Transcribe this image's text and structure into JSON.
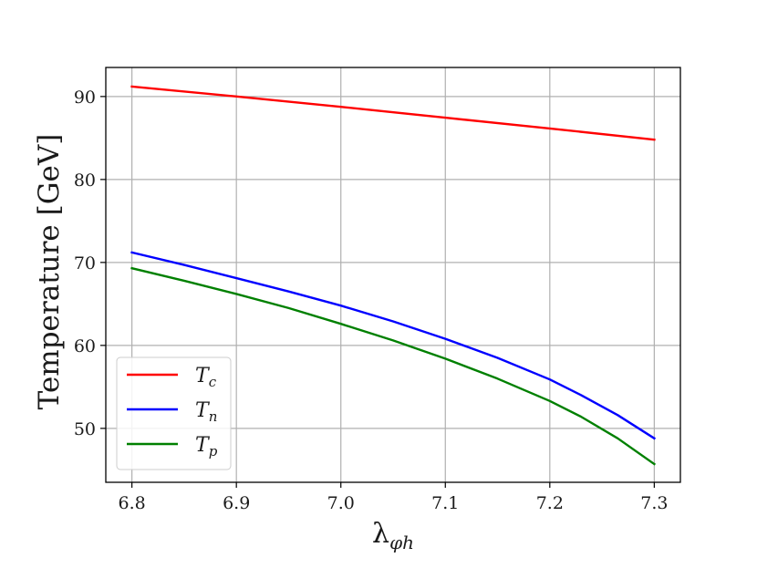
{
  "chart_data": {
    "type": "line",
    "title": "",
    "xlabel": "λ",
    "xlabel_sub": "φh",
    "ylabel": "Temperature [GeV]",
    "xlim": [
      6.775,
      7.325
    ],
    "ylim": [
      43.5,
      93.5
    ],
    "xticks": [
      6.8,
      6.9,
      7.0,
      7.1,
      7.2,
      7.3
    ],
    "xtick_labels": [
      "6.8",
      "6.9",
      "7.0",
      "7.1",
      "7.2",
      "7.3"
    ],
    "yticks": [
      50,
      60,
      70,
      80,
      90
    ],
    "ytick_labels": [
      "50",
      "60",
      "70",
      "80",
      "90"
    ],
    "grid": true,
    "legend_position": "lower-left",
    "series": [
      {
        "name": "T",
        "name_sub": "c",
        "color": "#ff0000",
        "x": [
          6.8,
          6.9,
          7.0,
          7.1,
          7.2,
          7.3
        ],
        "y": [
          91.2,
          90.0,
          88.75,
          87.45,
          86.15,
          84.8
        ]
      },
      {
        "name": "T",
        "name_sub": "n",
        "color": "#0000ff",
        "x": [
          6.8,
          6.85,
          6.9,
          6.95,
          7.0,
          7.05,
          7.1,
          7.15,
          7.2,
          7.23,
          7.265,
          7.3
        ],
        "y": [
          71.2,
          69.7,
          68.1,
          66.5,
          64.8,
          62.9,
          60.8,
          58.5,
          55.9,
          54.0,
          51.6,
          48.8
        ]
      },
      {
        "name": "T",
        "name_sub": "p",
        "color": "#008000",
        "x": [
          6.8,
          6.85,
          6.9,
          6.95,
          7.0,
          7.05,
          7.1,
          7.15,
          7.2,
          7.23,
          7.265,
          7.3
        ],
        "y": [
          69.3,
          67.8,
          66.2,
          64.5,
          62.6,
          60.6,
          58.4,
          56.0,
          53.3,
          51.4,
          48.8,
          45.7
        ]
      }
    ]
  }
}
